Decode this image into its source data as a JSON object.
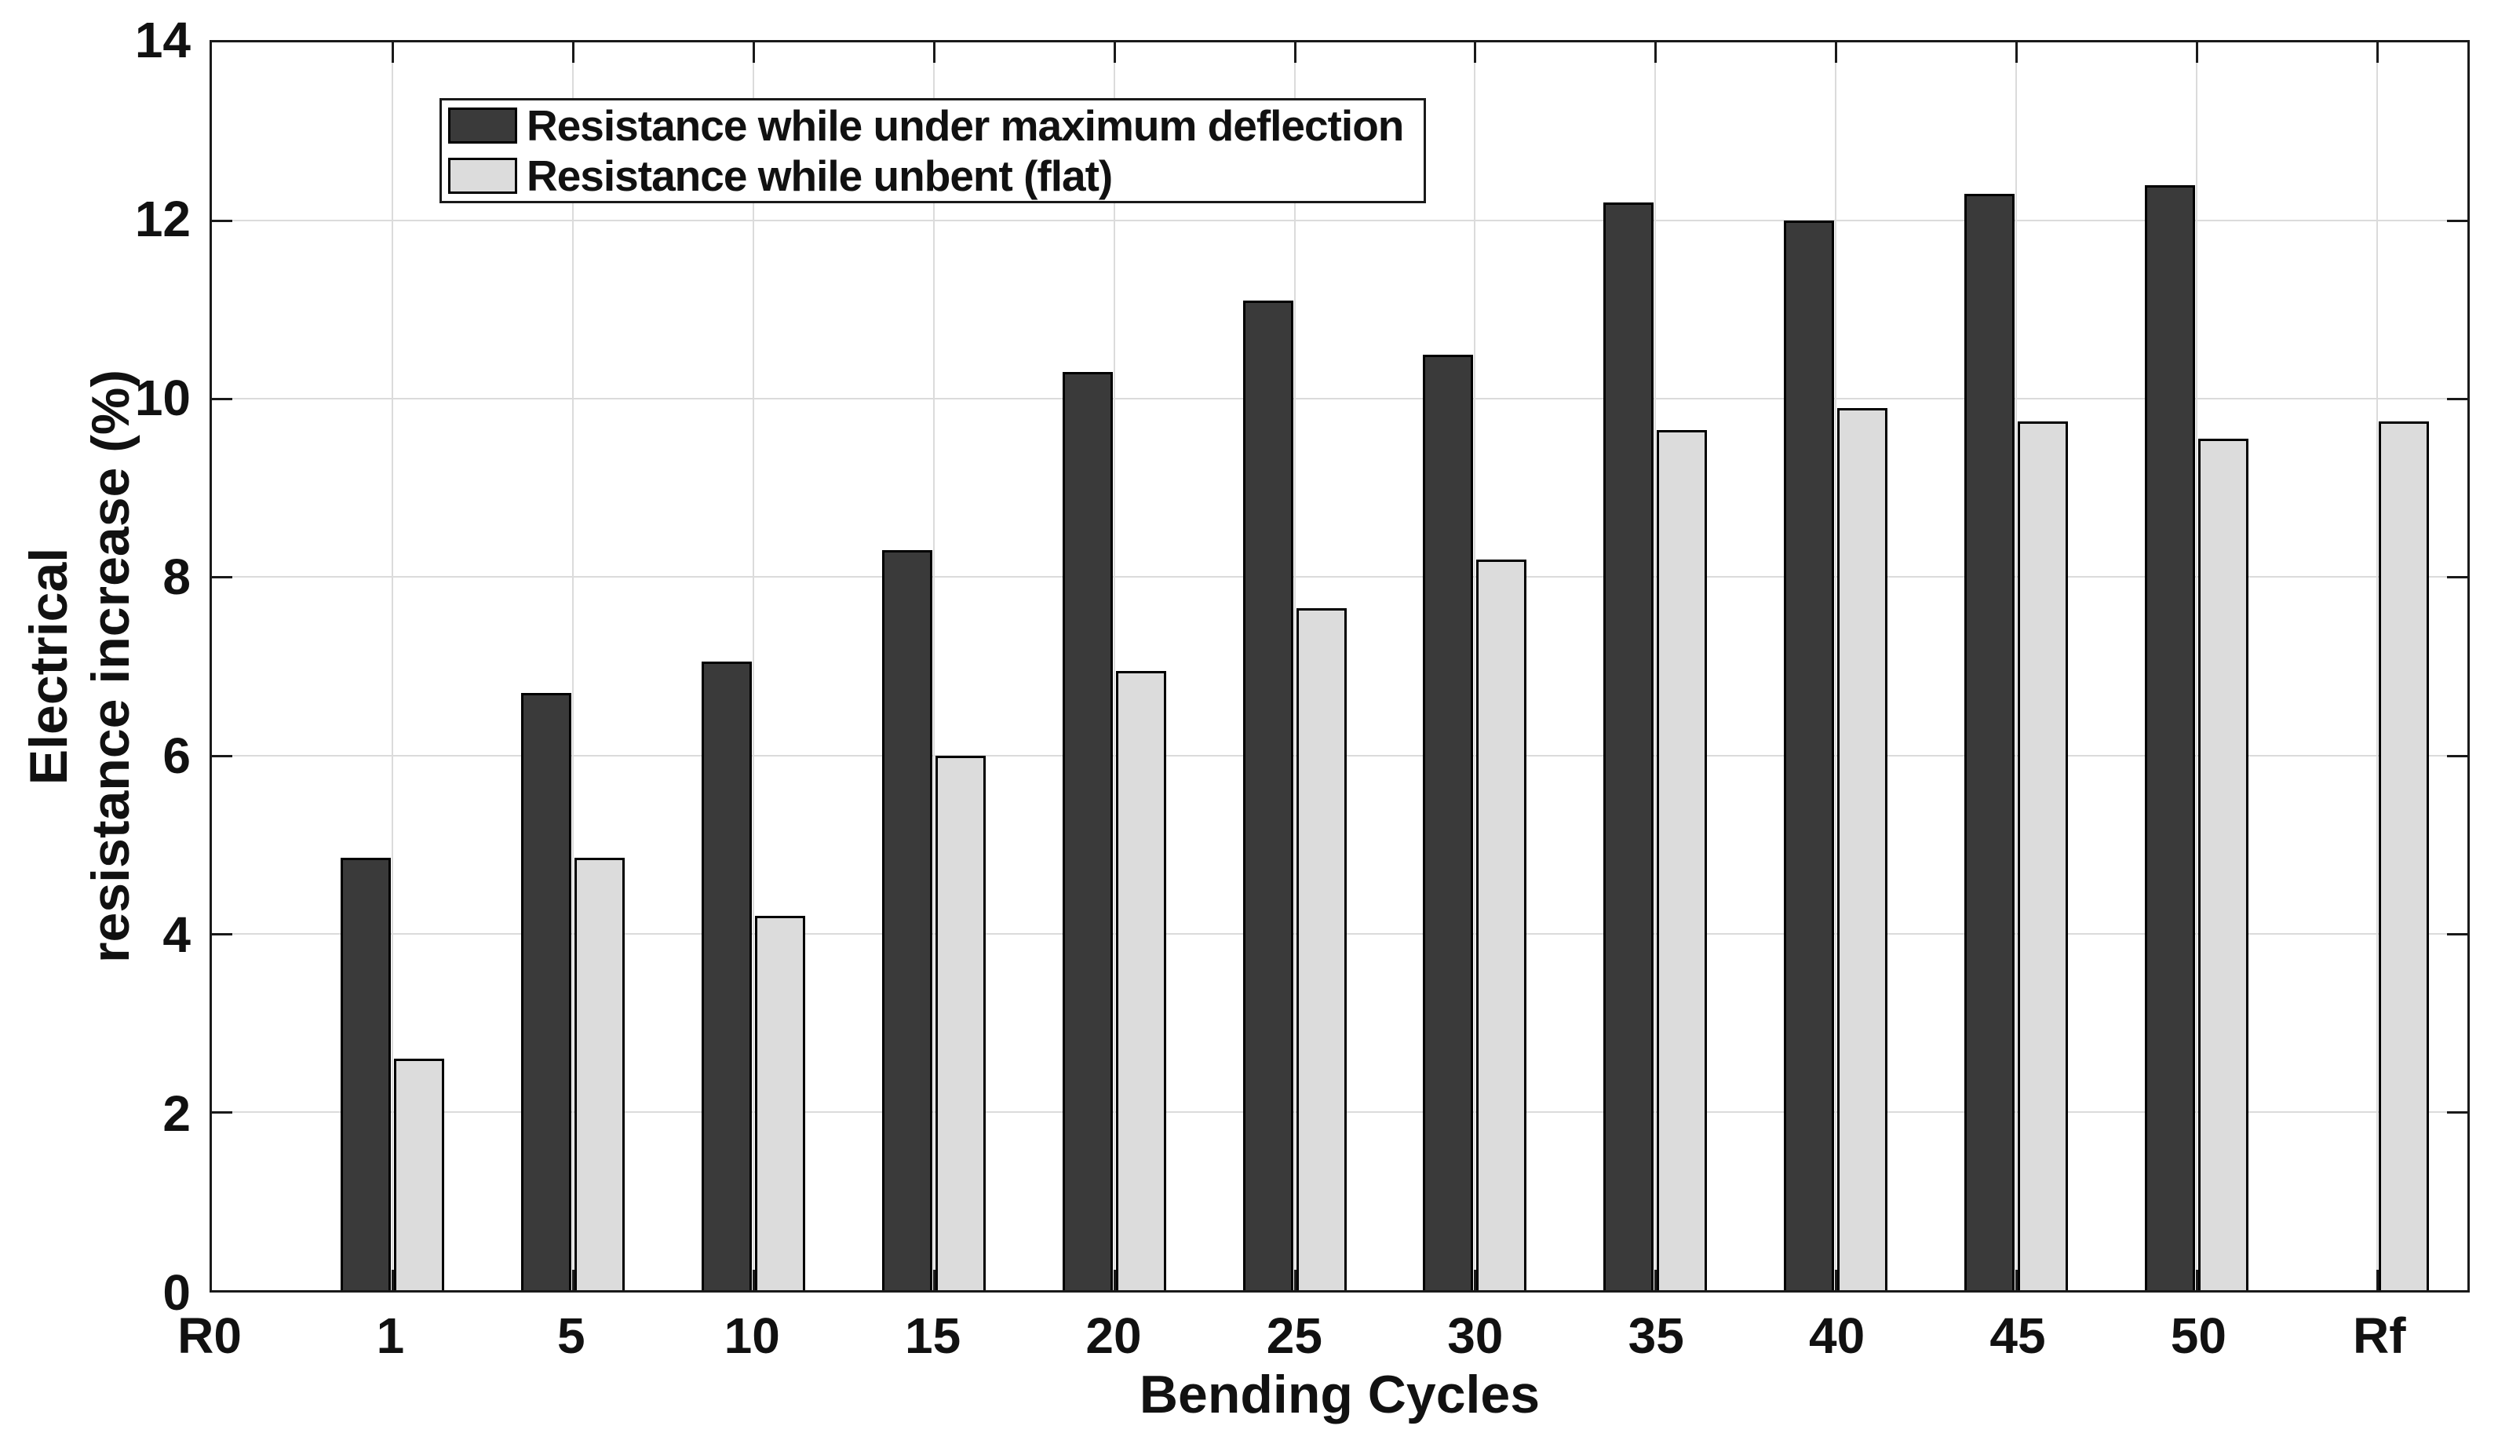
{
  "figure": {
    "background": "#ffffff",
    "ylabel_line1": "Electrical",
    "ylabel_line2": "resistance increase (%)",
    "colors": {
      "axis": "#1a1a1a",
      "grid": "#dbdbdb",
      "bar_edge": "#000000",
      "text": "#111111",
      "series_deflection": "#3a3a3a",
      "series_flat": "#dcdcdc"
    }
  },
  "chart_data": {
    "type": "bar",
    "title": "",
    "xlabel": "Bending Cycles",
    "ylabel": "Electrical resistance increase (%)",
    "categories": [
      "R0",
      "1",
      "5",
      "10",
      "15",
      "20",
      "25",
      "30",
      "35",
      "40",
      "45",
      "50",
      "Rf"
    ],
    "series": [
      {
        "name": "Resistance while under maximum deflection",
        "color": "#3a3a3a",
        "values": [
          null,
          4.85,
          6.7,
          7.05,
          8.3,
          10.3,
          11.1,
          10.5,
          12.2,
          12.0,
          12.3,
          12.4,
          null
        ]
      },
      {
        "name": "Resistance while unbent (flat)",
        "color": "#dcdcdc",
        "values": [
          null,
          2.6,
          4.85,
          4.2,
          6.0,
          6.95,
          7.65,
          8.2,
          9.65,
          9.9,
          9.75,
          9.55,
          9.75
        ]
      }
    ],
    "ylim": [
      0,
      14
    ],
    "yticks": [
      0,
      2,
      4,
      6,
      8,
      10,
      12,
      14
    ],
    "grid": true,
    "legend_position": "top-left"
  }
}
